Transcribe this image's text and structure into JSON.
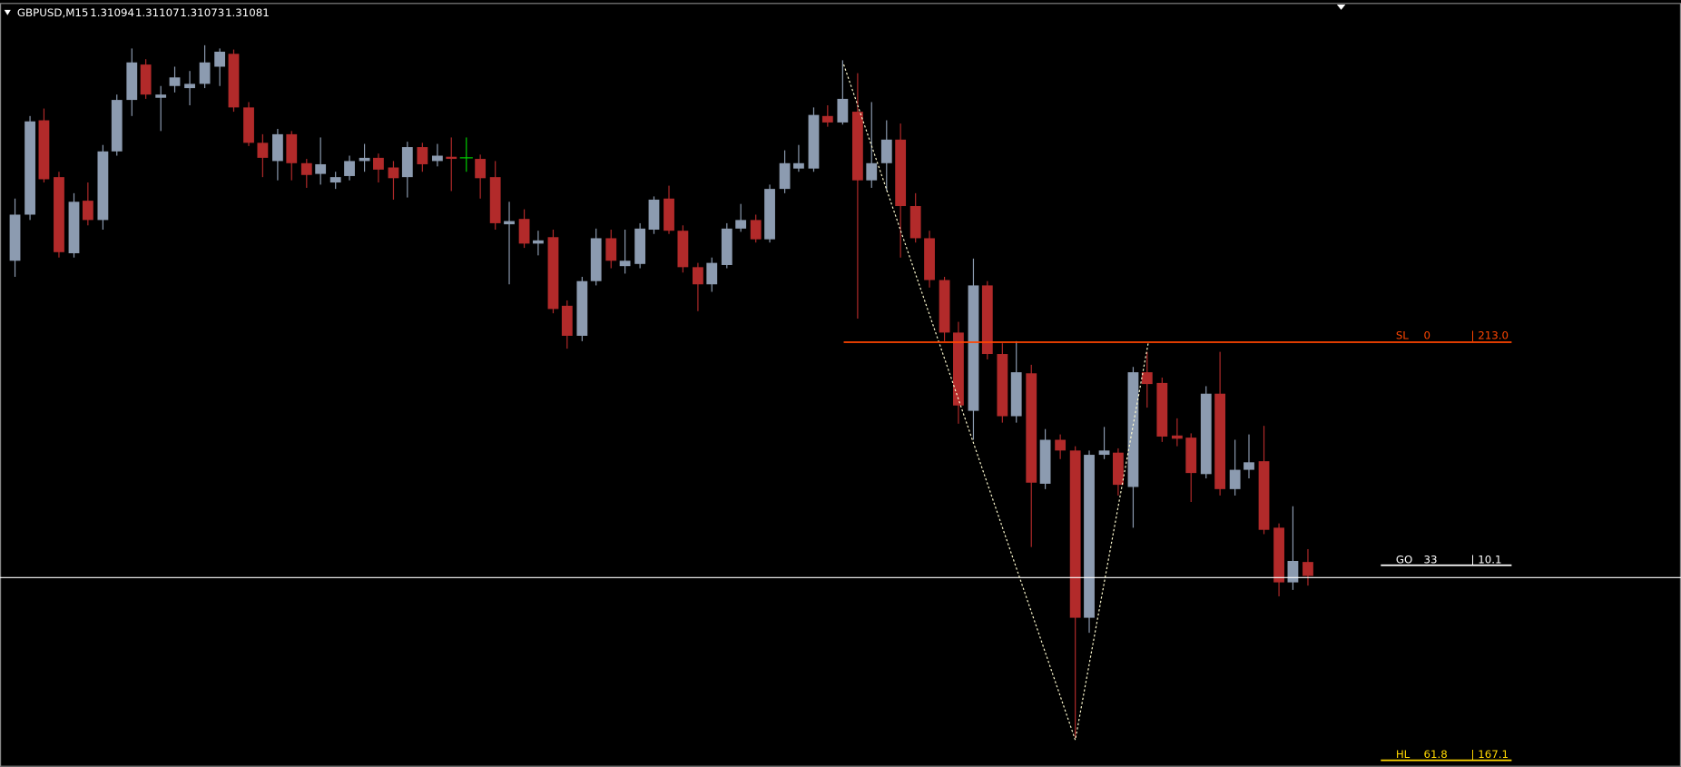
{
  "header": {
    "symbol": "GBPUSD,M15",
    "prices": [
      "1.31094",
      "1.31107",
      "1.31073",
      "1.31081"
    ]
  },
  "levels": [
    {
      "name": "SL",
      "level": "0",
      "distance": "| 213.0"
    },
    {
      "name": "GO",
      "level": "33",
      "distance": "| 10.1"
    },
    {
      "name": "HL",
      "level": "61.8",
      "distance": "| 167.1"
    }
  ]
}
